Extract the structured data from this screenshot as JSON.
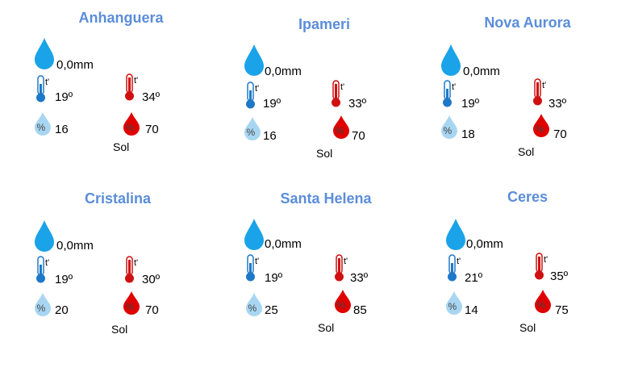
{
  "cities": [
    {
      "name": "Anhanguera",
      "rain": "0,0mm",
      "tmin": "19º",
      "tmax": "34º",
      "hmin": "16",
      "hmax": "70",
      "cond": "Sol"
    },
    {
      "name": "Ipameri",
      "rain": "0,0mm",
      "tmin": "19º",
      "tmax": "33º",
      "hmin": "16",
      "hmax": "70",
      "cond": "Sol"
    },
    {
      "name": "Nova Aurora",
      "rain": "0,0mm",
      "tmin": "19º",
      "tmax": "33º",
      "hmin": "18",
      "hmax": "70",
      "cond": "Sol"
    },
    {
      "name": "Cristalina",
      "rain": "0,0mm",
      "tmin": "19º",
      "tmax": "30º",
      "hmin": "20",
      "hmax": "70",
      "cond": "Sol"
    },
    {
      "name": "Santa Helena",
      "rain": "0,0mm",
      "tmin": "19º",
      "tmax": "33º",
      "hmin": "25",
      "hmax": "85",
      "cond": "Sol"
    },
    {
      "name": "Ceres",
      "rain": "0,0mm",
      "tmin": "21º",
      "tmax": "35º",
      "hmin": "14",
      "hmax": "75",
      "cond": "Sol"
    }
  ],
  "icons": {
    "rain": "rain-drop-icon",
    "temp_min": "thermometer-cold-icon",
    "temp_max": "thermometer-hot-icon",
    "humidity_min": "humidity-low-icon",
    "humidity_max": "humidity-high-icon"
  },
  "colors": {
    "title": "#5b8dd9",
    "rain_drop": "#1aa3e8",
    "humidity_low": "#a8d6f2",
    "humidity_high": "#e00000",
    "thermo_cold": "#1e78c8",
    "thermo_hot": "#d01010"
  }
}
